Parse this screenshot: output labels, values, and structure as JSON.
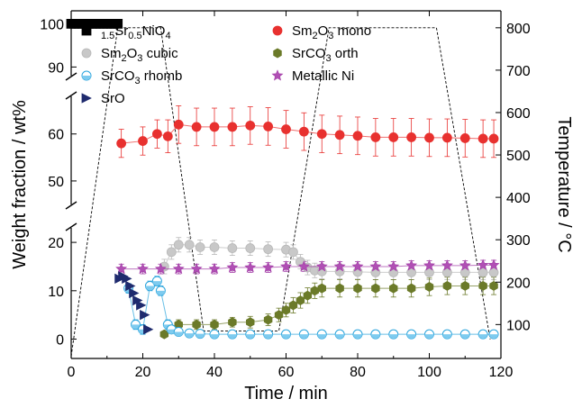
{
  "chart_data": {
    "type": "scatter",
    "xlabel": "Time / min",
    "ylabel_left": "Weight fraction / wt%",
    "ylabel_right": "Temperature / °C",
    "x_ticks": [
      "0",
      "20",
      "40",
      "60",
      "80",
      "100",
      "120"
    ],
    "y_ticks_left": [
      "0",
      "10",
      "20",
      "50",
      "60",
      "90",
      "100"
    ],
    "y_ticks_right": [
      "100",
      "200",
      "300",
      "400",
      "500",
      "600",
      "700",
      "800"
    ],
    "xlim": [
      0,
      120
    ],
    "ylim_left_segments": [
      [
        -4,
        23
      ],
      [
        45,
        68
      ],
      [
        88,
        103
      ]
    ],
    "ylim_right": [
      20,
      840
    ],
    "series": [
      {
        "name": "Sm1.5Sr0.5NiO4",
        "legend_main": "Sm",
        "legend_parts": [
          [
            "1.5",
            "sub"
          ],
          [
            "Sr",
            ""
          ],
          [
            "0.5",
            "sub"
          ],
          [
            "NiO",
            ""
          ],
          [
            "4",
            "sub"
          ]
        ],
        "marker": "square",
        "color": "#000000",
        "fill": "#000000",
        "x": [
          0,
          1,
          2,
          3,
          4,
          5,
          6,
          7,
          8,
          9,
          10,
          11,
          12,
          13
        ],
        "y": [
          100,
          100,
          100,
          100,
          100,
          100,
          100,
          100,
          100,
          100,
          100,
          100,
          100,
          100
        ],
        "err": [
          0,
          0,
          0,
          0,
          0,
          0,
          0,
          0,
          0,
          0,
          0,
          0,
          0,
          0
        ]
      },
      {
        "name": "Sm2O3 mono",
        "legend_parts": [
          [
            "Sm",
            ""
          ],
          [
            "2",
            "sub"
          ],
          [
            "O",
            ""
          ],
          [
            "3",
            "sub"
          ],
          [
            " mono",
            ""
          ]
        ],
        "marker": "circle",
        "color": "#e8312f",
        "fill": "#e8312f",
        "x": [
          14,
          20,
          24,
          27,
          30,
          35,
          40,
          45,
          50,
          55,
          60,
          65,
          70,
          75,
          80,
          85,
          90,
          95,
          100,
          105,
          110,
          115,
          118
        ],
        "y": [
          58,
          58.5,
          60,
          59.5,
          62,
          61.5,
          61.5,
          61.5,
          61.8,
          61.6,
          61,
          60.5,
          60,
          59.8,
          59.6,
          59.3,
          59.3,
          59.3,
          59.2,
          59.2,
          59.1,
          59,
          59
        ],
        "err": [
          3,
          3,
          3,
          3.5,
          4,
          4,
          4,
          4,
          4,
          4,
          4,
          4,
          4,
          4,
          4,
          4,
          4,
          4,
          4,
          4,
          4,
          4,
          4
        ]
      },
      {
        "name": "Sm2O3 cubic",
        "legend_parts": [
          [
            "Sm",
            ""
          ],
          [
            "2",
            "sub"
          ],
          [
            "O",
            ""
          ],
          [
            "3",
            "sub"
          ],
          [
            " cubic",
            ""
          ]
        ],
        "marker": "circle",
        "color": "#b8b8b8",
        "fill": "#c8c8c8",
        "x": [
          26,
          28,
          30,
          33,
          36,
          40,
          45,
          50,
          55,
          60,
          62,
          64,
          66,
          68,
          70,
          75,
          80,
          85,
          90,
          95,
          100,
          105,
          110,
          115,
          118
        ],
        "y": [
          15,
          18,
          19.5,
          19.5,
          19,
          19,
          18.8,
          18.8,
          18.6,
          18.5,
          18,
          16,
          14.8,
          14.2,
          14,
          14,
          13.9,
          13.8,
          13.8,
          13.8,
          13.8,
          13.8,
          13.8,
          13.8,
          13.8
        ],
        "err": [
          1.5,
          1.5,
          1.5,
          1.5,
          1.5,
          1.5,
          1.5,
          1.5,
          1.5,
          1.5,
          1.5,
          1.5,
          1.5,
          1.5,
          1.5,
          1.5,
          1.5,
          1.5,
          1.5,
          1.5,
          1.5,
          1.5,
          1.5,
          1.5,
          1.5
        ]
      },
      {
        "name": "SrCO3 orth",
        "legend_parts": [
          [
            "SrCO",
            ""
          ],
          [
            "3",
            "sub"
          ],
          [
            " orth",
            ""
          ]
        ],
        "marker": "hexagon",
        "color": "#6b7a29",
        "fill": "#6b7a29",
        "x": [
          26,
          28,
          30,
          35,
          40,
          45,
          50,
          55,
          58,
          60,
          62,
          64,
          66,
          68,
          70,
          75,
          80,
          85,
          90,
          95,
          100,
          105,
          110,
          115,
          118
        ],
        "y": [
          1,
          2,
          3,
          3,
          3,
          3.5,
          3.5,
          4,
          5,
          6,
          7,
          8,
          9,
          10,
          10.5,
          10.5,
          10.5,
          10.5,
          10.5,
          10.5,
          10.8,
          11,
          11,
          11,
          11
        ],
        "err": [
          0.5,
          0.8,
          1,
          1,
          1,
          1,
          1.2,
          1.2,
          1.4,
          1.4,
          1.6,
          1.6,
          1.6,
          1.6,
          1.8,
          1.8,
          1.8,
          1.8,
          1.8,
          1.8,
          1.8,
          1.8,
          1.8,
          1.8,
          1.8
        ]
      },
      {
        "name": "SrCO3 rhomb",
        "legend_parts": [
          [
            "SrCO",
            ""
          ],
          [
            "3",
            "sub"
          ],
          [
            " rhomb",
            ""
          ]
        ],
        "marker": "circle-split",
        "color": "#2aa4dc",
        "fill": "#7ecbef",
        "x": [
          16,
          18,
          20,
          22,
          24,
          25,
          27,
          28,
          30,
          33,
          36,
          40,
          45,
          50,
          55,
          60,
          65,
          70,
          75,
          80,
          85,
          90,
          95,
          100,
          105,
          110,
          115,
          118
        ],
        "y": [
          10.5,
          3,
          2,
          11,
          12,
          10,
          3,
          2,
          1.5,
          1.2,
          1.1,
          1,
          1,
          1,
          1,
          1,
          1,
          1,
          1,
          1,
          1,
          1,
          1,
          1,
          1,
          1,
          1,
          1
        ],
        "err": [
          1,
          1,
          1,
          1,
          1,
          1,
          1,
          0.8,
          0.6,
          0.5,
          0.5,
          0.5,
          0.5,
          0.5,
          0.5,
          0.5,
          0.5,
          0.5,
          0.5,
          0.5,
          0.5,
          0.5,
          0.5,
          0.5,
          0.5,
          0.5,
          0.5,
          0.5
        ]
      },
      {
        "name": "Metallic Ni",
        "legend_parts": [
          [
            "Metallic Ni",
            ""
          ]
        ],
        "marker": "star",
        "color": "#a23da6",
        "fill": "#b04fb4",
        "x": [
          14,
          20,
          25,
          30,
          35,
          40,
          45,
          50,
          55,
          60,
          65,
          70,
          75,
          80,
          85,
          90,
          95,
          100,
          105,
          110,
          115,
          118
        ],
        "y": [
          14.5,
          14.5,
          14.5,
          14.5,
          14.5,
          14.5,
          14.8,
          14.8,
          14.8,
          15,
          15,
          15,
          15,
          15,
          15,
          15,
          15.2,
          15.2,
          15.2,
          15.2,
          15.3,
          15.3
        ],
        "err": [
          1,
          1,
          1,
          1,
          1,
          1,
          1,
          1,
          1,
          1,
          1,
          1,
          1,
          1,
          1,
          1,
          1,
          1,
          1,
          1,
          1,
          1
        ]
      },
      {
        "name": "SrO",
        "legend_parts": [
          [
            "SrO",
            ""
          ]
        ],
        "marker": "triangle-right",
        "color": "#1f2b6e",
        "fill": "#1f2b6e",
        "x": [
          13.5,
          14.5,
          15.5,
          16.5,
          17.5,
          18.5,
          19.5,
          20.5,
          21.5
        ],
        "y": [
          12.5,
          13,
          12.5,
          11,
          9.5,
          8,
          7,
          5,
          2
        ],
        "err": [
          0,
          0,
          0,
          0,
          0,
          0,
          0,
          0,
          0
        ]
      }
    ],
    "temperature_profile": {
      "name": "Temperature",
      "color": "#000000",
      "x": [
        0,
        13,
        25,
        37,
        58,
        72,
        102,
        117
      ],
      "y": [
        25,
        800,
        800,
        85,
        85,
        800,
        800,
        65
      ]
    }
  }
}
